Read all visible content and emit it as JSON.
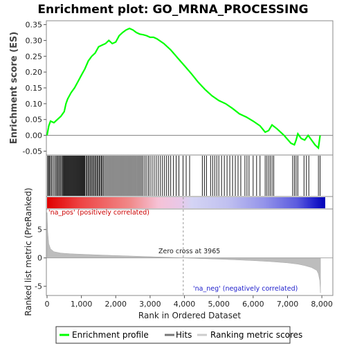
{
  "chart_data": [
    {
      "type": "line",
      "title": "Enrichment plot: GO_MRNA_PROCESSING",
      "ylabel": "Enrichment score (ES)",
      "xlim": [
        0,
        8300
      ],
      "ylim": [
        -0.06,
        0.36
      ],
      "yticks": [
        -0.05,
        0.0,
        0.05,
        0.1,
        0.15,
        0.2,
        0.25,
        0.3,
        0.35
      ],
      "ytick_labels": [
        "-0.05",
        "0.00",
        "0.05",
        "0.10",
        "0.15",
        "0.20",
        "0.25",
        "0.30",
        "0.35"
      ],
      "series": [
        {
          "name": "Enrichment profile",
          "color": "#00ff00",
          "x": [
            0,
            50,
            100,
            200,
            300,
            400,
            500,
            550,
            600,
            700,
            800,
            900,
            1000,
            1100,
            1200,
            1300,
            1400,
            1500,
            1600,
            1700,
            1800,
            1900,
            2000,
            2100,
            2200,
            2300,
            2400,
            2500,
            2600,
            2700,
            2800,
            2900,
            3000,
            3100,
            3200,
            3400,
            3600,
            3800,
            4000,
            4200,
            4400,
            4600,
            4800,
            5000,
            5200,
            5400,
            5600,
            5800,
            6000,
            6200,
            6350,
            6450,
            6550,
            6700,
            6900,
            7100,
            7200,
            7250,
            7300,
            7400,
            7500,
            7600,
            7700,
            7800,
            7900,
            7950
          ],
          "y": [
            0.0,
            0.03,
            0.045,
            0.04,
            0.05,
            0.06,
            0.075,
            0.1,
            0.115,
            0.135,
            0.15,
            0.17,
            0.19,
            0.21,
            0.235,
            0.25,
            0.26,
            0.28,
            0.285,
            0.29,
            0.3,
            0.29,
            0.295,
            0.315,
            0.325,
            0.333,
            0.338,
            0.333,
            0.325,
            0.32,
            0.318,
            0.315,
            0.31,
            0.31,
            0.305,
            0.29,
            0.27,
            0.245,
            0.22,
            0.195,
            0.168,
            0.145,
            0.125,
            0.11,
            0.1,
            0.085,
            0.068,
            0.058,
            0.045,
            0.03,
            0.01,
            0.015,
            0.033,
            0.02,
            0.0,
            -0.025,
            -0.03,
            -0.015,
            0.005,
            -0.01,
            -0.015,
            0.0,
            -0.015,
            -0.03,
            -0.04,
            0.0
          ]
        }
      ],
      "zero_line": 0.0
    },
    {
      "type": "scatter",
      "series": [
        {
          "name": "Hits",
          "color": "#000000",
          "x": [
            20,
            40,
            70,
            100,
            130,
            170,
            210,
            250,
            280,
            310,
            340,
            370,
            400,
            430,
            460,
            480,
            500,
            520,
            540,
            560,
            580,
            600,
            620,
            640,
            660,
            680,
            700,
            720,
            740,
            760,
            780,
            800,
            820,
            840,
            860,
            880,
            900,
            920,
            940,
            960,
            980,
            1000,
            1020,
            1040,
            1060,
            1080,
            1100,
            1130,
            1160,
            1190,
            1220,
            1250,
            1280,
            1310,
            1340,
            1370,
            1400,
            1430,
            1460,
            1490,
            1520,
            1550,
            1580,
            1610,
            1640,
            1680,
            1720,
            1760,
            1800,
            1840,
            1880,
            1920,
            1960,
            2000,
            2040,
            2080,
            2120,
            2160,
            2200,
            2240,
            2280,
            2320,
            2360,
            2400,
            2440,
            2480,
            2520,
            2560,
            2600,
            2640,
            2680,
            2720,
            2760,
            2800,
            2850,
            2900,
            2950,
            3000,
            3060,
            3120,
            3180,
            3240,
            3300,
            3360,
            3420,
            3480,
            3540,
            3600,
            3680,
            3760,
            3840,
            3960,
            4050,
            4150,
            4520,
            4580,
            4640,
            4760,
            4820,
            4880,
            4940,
            5000,
            5080,
            5160,
            5240,
            5320,
            5400,
            5480,
            5560,
            5640,
            5760,
            5820,
            5880,
            6000,
            6100,
            6200,
            6350,
            6400,
            6450,
            6500,
            6550,
            6600,
            7150,
            7200,
            7250,
            7300,
            7480,
            7550,
            7620,
            7900,
            7950
          ]
        }
      ]
    },
    {
      "type": "area",
      "xlabel": "Rank in Ordered Dataset",
      "ylabel": "Ranked list metric (PreRanked)",
      "xlim": [
        0,
        8300
      ],
      "ylim": [
        -6.5,
        8.5
      ],
      "xticks": [
        0,
        1000,
        2000,
        3000,
        4000,
        5000,
        6000,
        7000,
        8000
      ],
      "xtick_labels": [
        "0",
        "1,000",
        "2,000",
        "3,000",
        "4,000",
        "5,000",
        "6,000",
        "7,000",
        "8,000"
      ],
      "yticks": [
        -5,
        0,
        5
      ],
      "ytick_labels": [
        "-5",
        "0",
        "5"
      ],
      "series": [
        {
          "name": "Ranking metric scores",
          "color": "#c0c0c0",
          "x": [
            0,
            20,
            50,
            100,
            200,
            400,
            700,
            1000,
            1500,
            2000,
            2500,
            3000,
            3500,
            3965,
            4500,
            5000,
            5500,
            6000,
            6500,
            7000,
            7300,
            7500,
            7700,
            7850,
            7900,
            7940,
            7960
          ],
          "y": [
            8.0,
            4.5,
            2.5,
            1.6,
            1.1,
            0.85,
            0.72,
            0.65,
            0.52,
            0.42,
            0.32,
            0.22,
            0.12,
            0.0,
            -0.12,
            -0.22,
            -0.34,
            -0.48,
            -0.65,
            -0.88,
            -1.1,
            -1.35,
            -1.7,
            -2.2,
            -2.8,
            -4.0,
            -6.2
          ]
        }
      ],
      "annotations": {
        "zero_cross": "Zero cross at 3965",
        "pos_label": "'na_pos' (positively correlated)",
        "neg_label": "'na_neg' (negatively correlated)"
      }
    }
  ],
  "legend": {
    "items": [
      "Enrichment profile",
      "Hits",
      "Ranking metric scores"
    ],
    "colors": [
      "#00ff00",
      "#777777",
      "#cccccc"
    ]
  }
}
